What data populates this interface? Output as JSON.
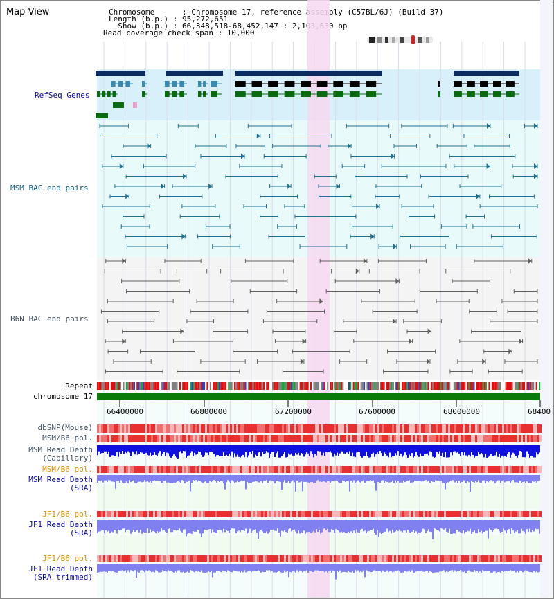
{
  "title": "Map View",
  "info": {
    "chromosome": "Chromosome      : Chromosome 17, reference assembly (C57BL/6J) (Build 37)",
    "length": "Length (b.p.) : 95,272,651",
    "show": "  Show (b.p.) : 66,348,518-68,452,147 : 2,103,630 bp",
    "coverage": "Read coverage check span : 10,000"
  },
  "tracks": {
    "refseq": "RefSeq Genes",
    "msm_bac": "MSM BAC end pairs",
    "b6n_bac": "B6N BAC end pairs",
    "repeat": "Repeat",
    "chromosome": "chromosome 17",
    "dbsnp": "dbSNP(Mouse)",
    "msm_b6_pol": "MSM/B6 pol.",
    "msm_depth_cap_1": "MSM Read Depth",
    "msm_depth_cap_2": "(Capillary)",
    "msm_b6_pol2": "MSM/B6 pol.",
    "msm_depth_sra_1": "MSM Read Depth",
    "msm_depth_sra_2": "(SRA)",
    "jf1_b6_pol": "JF1/B6 pol.",
    "jf1_depth_sra_1": "JF1 Read Depth",
    "jf1_depth_sra_2": "(SRA)",
    "jf1_b6_pol2": "JF1/B6 pol.",
    "jf1_depth_trim_1": "JF1 Read Depth",
    "jf1_depth_trim_2": "(SRA trimmed)"
  },
  "axis_ticks": [
    "66400000",
    "66800000",
    "67200000",
    "67600000",
    "68000000",
    "68400"
  ],
  "colors": {
    "refseq_bg": "#d8f0fa",
    "msm_bg": "#e8fafa",
    "b6n_bg": "#f4f4f4",
    "highlight": "#f6d8f0",
    "chromosome_bar": "#0a7a0a",
    "gene_dark": "#0a2a60",
    "gene_mid": "#3a8ab0",
    "gene_green": "#0a6a10",
    "msm_line": "#207090",
    "b6n_line": "#606060",
    "snp": "#e83030",
    "depth_dark": "#1010e0",
    "depth_light": "#8080f0"
  }
}
